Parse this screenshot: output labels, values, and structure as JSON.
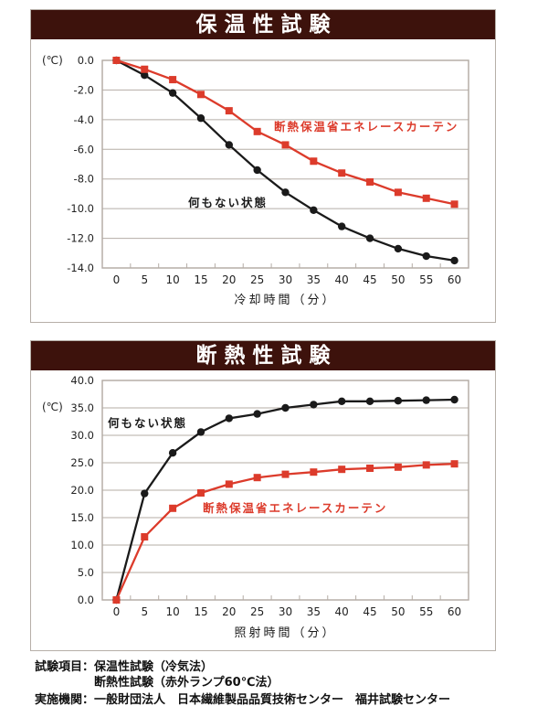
{
  "colors": {
    "header_bg": "#3d120c",
    "header_text": "#ffffff",
    "series_black": "#1a1a1a",
    "series_red": "#dc3b2b",
    "grid": "#b5ada6"
  },
  "chart_data": [
    {
      "type": "line",
      "title": "保温性試験",
      "unit_label": "(℃)",
      "xlabel": "冷却時間（分）",
      "x": [
        0,
        5,
        10,
        15,
        20,
        25,
        30,
        35,
        40,
        45,
        50,
        55,
        60
      ],
      "ylim": [
        -14.0,
        0.0
      ],
      "ytick_step": 2.0,
      "grid": true,
      "legend_position": "inline-labels",
      "series": [
        {
          "name": "何もない状態",
          "color": "#1a1a1a",
          "marker": "circle",
          "values": [
            0.0,
            -1.0,
            -2.2,
            -3.9,
            -5.7,
            -7.4,
            -8.9,
            -10.1,
            -11.2,
            -12.0,
            -12.7,
            -13.2,
            -13.5
          ],
          "label_pos": {
            "x": 172,
            "y": 183
          }
        },
        {
          "name": "断熱保温省エネレースカーテン",
          "color": "#dc3b2b",
          "marker": "square",
          "values": [
            0.0,
            -0.6,
            -1.3,
            -2.3,
            -3.4,
            -4.8,
            -5.7,
            -6.8,
            -7.6,
            -8.2,
            -8.9,
            -9.3,
            -9.7
          ],
          "label_pos": {
            "x": 266,
            "y": 100
          }
        }
      ]
    },
    {
      "type": "line",
      "title": "断熱性試験",
      "unit_label": "(℃)",
      "xlabel": "照射時間（分）",
      "x": [
        0,
        5,
        10,
        15,
        20,
        25,
        30,
        35,
        40,
        45,
        50,
        55,
        60
      ],
      "ylim": [
        0.0,
        40.0
      ],
      "ytick_step": 5.0,
      "grid": true,
      "legend_position": "inline-labels",
      "series": [
        {
          "name": "何もない状態",
          "color": "#1a1a1a",
          "marker": "circle",
          "values": [
            0.0,
            19.4,
            26.8,
            30.6,
            33.1,
            33.9,
            35.0,
            35.6,
            36.2,
            36.2,
            36.3,
            36.4,
            36.5
          ],
          "label_pos": {
            "x": 84,
            "y": 62
          }
        },
        {
          "name": "断熱保温省エネレースカーテン",
          "color": "#dc3b2b",
          "marker": "square",
          "values": [
            0.0,
            11.5,
            16.7,
            19.5,
            21.1,
            22.3,
            22.9,
            23.3,
            23.8,
            24.0,
            24.2,
            24.6,
            24.8
          ],
          "label_pos": {
            "x": 188,
            "y": 155
          }
        }
      ]
    }
  ],
  "footer": {
    "rows": [
      {
        "label": "試験項目：",
        "line1": "保温性試験（冷気法）",
        "line2": "断熱性試験（赤外ランプ60℃法）"
      },
      {
        "label": "実施機関：",
        "line1": "一般財団法人　日本繊維製品品質技術センター　福井試験センター",
        "line2": ""
      }
    ]
  }
}
